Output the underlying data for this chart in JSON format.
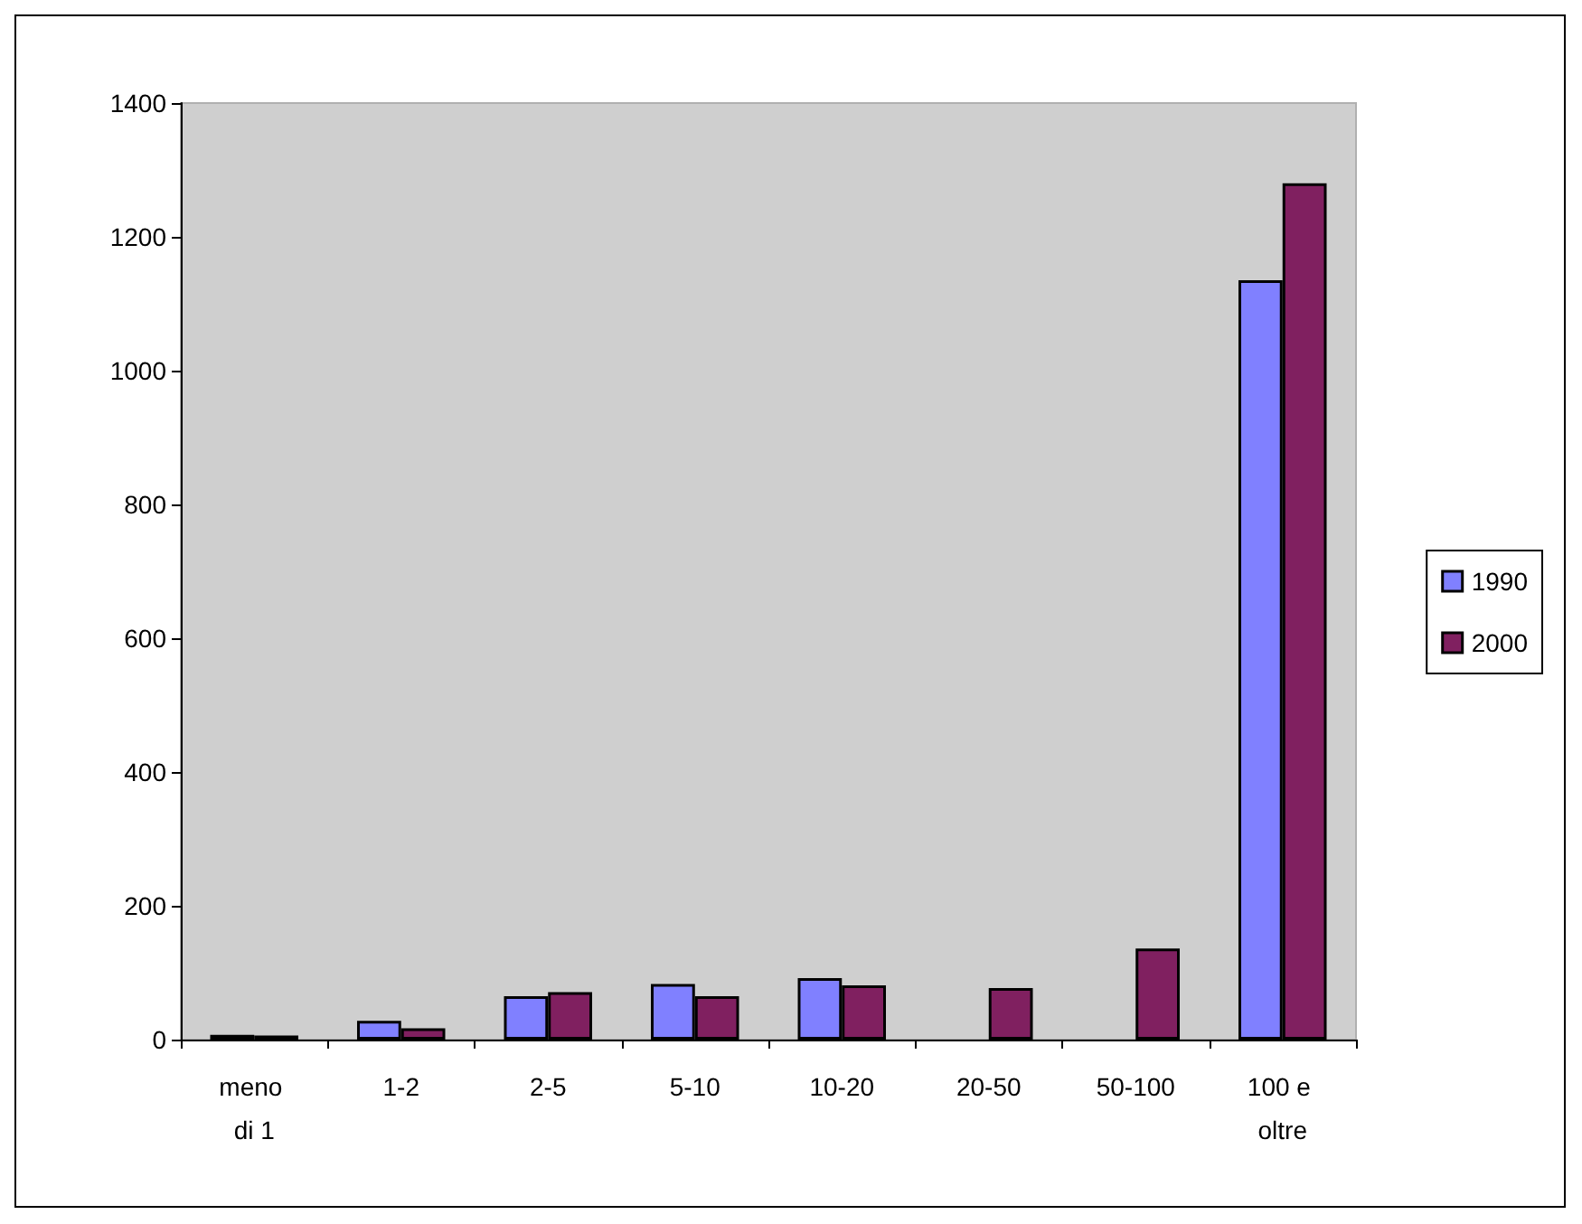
{
  "chart_data": {
    "type": "bar",
    "categories": [
      "meno di 1",
      "1-2",
      "2-5",
      "5-10",
      "10-20",
      "20-50",
      "50-100",
      "100 e oltre"
    ],
    "series": [
      {
        "name": "1990",
        "color": "#8080ff",
        "values": [
          7,
          28,
          65,
          83,
          92,
          null,
          null,
          1135
        ]
      },
      {
        "name": "2000",
        "color": "#802060",
        "values": [
          6,
          17,
          71,
          65,
          81,
          77,
          136,
          1280
        ]
      }
    ],
    "ylim": [
      0,
      1400
    ],
    "yticks": [
      0,
      200,
      400,
      600,
      800,
      1000,
      1200,
      1400
    ],
    "grid": false,
    "legend": "right"
  }
}
